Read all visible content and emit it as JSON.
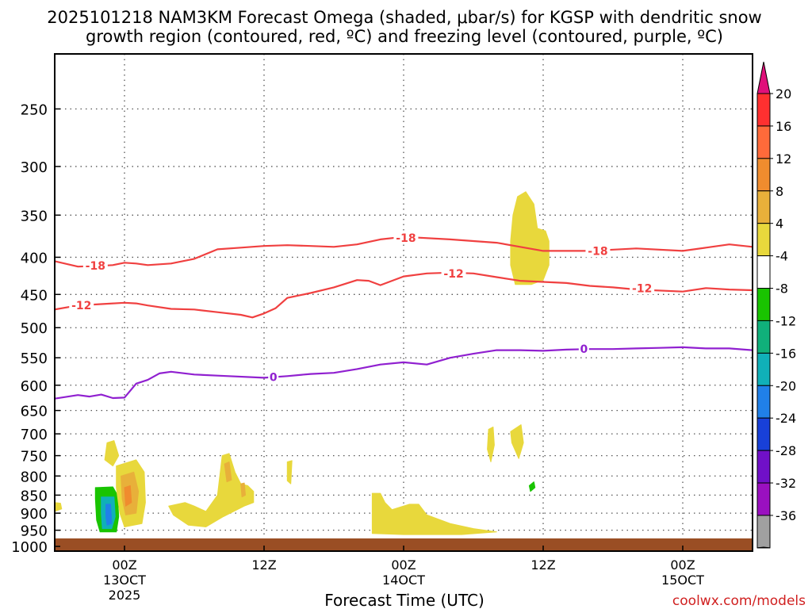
{
  "chart_data": {
    "type": "heatmap",
    "title_line1": "2025101218 NAM3KM Forecast Omega (shaded, μbar/s) for KGSP with dendritic snow",
    "title_line2": "growth region (contoured, red, ºC) and freezing level (contoured, purple, ºC)",
    "xlabel": "Forecast Time (UTC)",
    "credit": "coolwx.com/models",
    "x_ticks": [
      {
        "hour": 12,
        "label": "00Z",
        "sub1": "13OCT",
        "sub2": "2025"
      },
      {
        "hour": 24,
        "label": "12Z",
        "sub1": "",
        "sub2": ""
      },
      {
        "hour": 36,
        "label": "00Z",
        "sub1": "14OCT",
        "sub2": ""
      },
      {
        "hour": 48,
        "label": "12Z",
        "sub1": "",
        "sub2": ""
      },
      {
        "hour": 60,
        "label": "00Z",
        "sub1": "15OCT",
        "sub2": ""
      }
    ],
    "x_range_hours": [
      6,
      66
    ],
    "y_ticks": [
      250,
      300,
      350,
      400,
      450,
      500,
      550,
      600,
      650,
      700,
      750,
      800,
      850,
      900,
      950,
      1000
    ],
    "y_range_hpa": [
      210,
      1015
    ],
    "surface_pressure_hpa": 975,
    "colorbar": {
      "labels": [
        "20",
        "16",
        "12",
        "8",
        "4",
        "-4",
        "-8",
        "-12",
        "-16",
        "-20",
        "-24",
        "-28",
        "-32",
        "-36"
      ],
      "colors": [
        "#ff3030",
        "#ff6a3a",
        "#f08c2e",
        "#e8b03a",
        "#e8d83c",
        "#ffffff",
        "#19c400",
        "#10b07a",
        "#10b0b8",
        "#2080e8",
        "#1840d8",
        "#7010c8",
        "#9a10c0",
        "#a0a0a0"
      ],
      "top_color": "#e0107a",
      "bottom_color": "#000000"
    },
    "contours": [
      {
        "name": "dgz-minus18",
        "value": -18,
        "label": "-18",
        "color": "#f04040",
        "points": [
          [
            6,
            405
          ],
          [
            8,
            412
          ],
          [
            10,
            411
          ],
          [
            11,
            410
          ],
          [
            12,
            407
          ],
          [
            13,
            408
          ],
          [
            14,
            410
          ],
          [
            16,
            408
          ],
          [
            18,
            402
          ],
          [
            20,
            390
          ],
          [
            22,
            388
          ],
          [
            24,
            386
          ],
          [
            26,
            385
          ],
          [
            28,
            386
          ],
          [
            30,
            387
          ],
          [
            32,
            384
          ],
          [
            34,
            378
          ],
          [
            36,
            375
          ],
          [
            40,
            378
          ],
          [
            44,
            382
          ],
          [
            48,
            392
          ],
          [
            52,
            392
          ],
          [
            56,
            389
          ],
          [
            60,
            392
          ],
          [
            62,
            388
          ],
          [
            64,
            384
          ],
          [
            66,
            387
          ]
        ],
        "label_points": [
          [
            9.5,
            411
          ],
          [
            36.2,
            376
          ],
          [
            52.7,
            392
          ]
        ]
      },
      {
        "name": "dgz-minus12",
        "value": -12,
        "label": "-12",
        "color": "#f04040",
        "points": [
          [
            6,
            472
          ],
          [
            8,
            466
          ],
          [
            10,
            464
          ],
          [
            12,
            462
          ],
          [
            13,
            463
          ],
          [
            14,
            466
          ],
          [
            16,
            471
          ],
          [
            18,
            472
          ],
          [
            20,
            476
          ],
          [
            22,
            480
          ],
          [
            23,
            484
          ],
          [
            24,
            478
          ],
          [
            25,
            470
          ],
          [
            26,
            455
          ],
          [
            28,
            448
          ],
          [
            30,
            440
          ],
          [
            32,
            430
          ],
          [
            33,
            431
          ],
          [
            34,
            437
          ],
          [
            36,
            425
          ],
          [
            38,
            421
          ],
          [
            40,
            420
          ],
          [
            42,
            421
          ],
          [
            44,
            426
          ],
          [
            46,
            431
          ],
          [
            50,
            434
          ],
          [
            52,
            438
          ],
          [
            54,
            440
          ],
          [
            56,
            443
          ],
          [
            60,
            446
          ],
          [
            62,
            441
          ],
          [
            64,
            443
          ],
          [
            66,
            444
          ]
        ],
        "label_points": [
          [
            8.3,
            466
          ],
          [
            40.3,
            421
          ],
          [
            56.5,
            441
          ]
        ]
      },
      {
        "name": "freezing-level",
        "value": 0,
        "label": "0",
        "color": "#9020d0",
        "points": [
          [
            6,
            626
          ],
          [
            8,
            619
          ],
          [
            9,
            622
          ],
          [
            10,
            618
          ],
          [
            11,
            625
          ],
          [
            12,
            624
          ],
          [
            13,
            597
          ],
          [
            14,
            590
          ],
          [
            15,
            578
          ],
          [
            16,
            575
          ],
          [
            18,
            580
          ],
          [
            20,
            582
          ],
          [
            24,
            586
          ],
          [
            26,
            583
          ],
          [
            28,
            579
          ],
          [
            30,
            577
          ],
          [
            32,
            570
          ],
          [
            34,
            562
          ],
          [
            36,
            558
          ],
          [
            38,
            562
          ],
          [
            40,
            550
          ],
          [
            42,
            543
          ],
          [
            44,
            537
          ],
          [
            46,
            537
          ],
          [
            48,
            538
          ],
          [
            50,
            536
          ],
          [
            52,
            535
          ],
          [
            54,
            535
          ],
          [
            56,
            534
          ],
          [
            58,
            533
          ],
          [
            60,
            532
          ],
          [
            62,
            534
          ],
          [
            64,
            534
          ],
          [
            66,
            537
          ]
        ],
        "label_points": [
          [
            24.8,
            585
          ],
          [
            51.5,
            535
          ]
        ]
      }
    ],
    "omega_regions": [
      {
        "name": "upward-yellow-upper",
        "value": 4,
        "color": "#e8d83c",
        "points": [
          [
            45.8,
            330
          ],
          [
            46.5,
            325
          ],
          [
            47.2,
            338
          ],
          [
            47.5,
            365
          ],
          [
            48.2,
            368
          ],
          [
            48.5,
            380
          ],
          [
            48.5,
            410
          ],
          [
            48.0,
            430
          ],
          [
            47.0,
            436
          ],
          [
            45.6,
            436
          ],
          [
            45.2,
            410
          ],
          [
            45.2,
            380
          ],
          [
            45.4,
            350
          ]
        ]
      },
      {
        "name": "upward-yellow-low-left",
        "value": 4,
        "color": "#e8d83c",
        "points": [
          [
            6.0,
            870
          ],
          [
            6.5,
            872
          ],
          [
            6.6,
            888
          ],
          [
            6.0,
            895
          ]
        ]
      },
      {
        "name": "upward-yellow-low-1",
        "value": 4,
        "color": "#e8d83c",
        "points": [
          [
            10.5,
            720
          ],
          [
            11.1,
            715
          ],
          [
            11.5,
            750
          ],
          [
            11.0,
            775
          ],
          [
            10.3,
            760
          ]
        ]
      },
      {
        "name": "downward-blue-green",
        "value": -8,
        "color": "#19c400",
        "points": [
          [
            9.5,
            830
          ],
          [
            11.0,
            828
          ],
          [
            11.4,
            850
          ],
          [
            11.5,
            910
          ],
          [
            11.3,
            955
          ],
          [
            9.9,
            955
          ],
          [
            9.6,
            920
          ],
          [
            9.5,
            860
          ]
        ]
      },
      {
        "name": "downward-cyan",
        "value": -12,
        "color": "#10b0b8",
        "points": [
          [
            10.0,
            855
          ],
          [
            11.1,
            855
          ],
          [
            11.2,
            910
          ],
          [
            10.9,
            945
          ],
          [
            10.1,
            945
          ],
          [
            10.0,
            900
          ]
        ]
      },
      {
        "name": "downward-blue",
        "value": -20,
        "color": "#2080e8",
        "points": [
          [
            10.4,
            875
          ],
          [
            10.8,
            875
          ],
          [
            10.9,
            930
          ],
          [
            10.5,
            935
          ],
          [
            10.4,
            910
          ]
        ]
      },
      {
        "name": "upward-yellow-low-2",
        "value": 4,
        "color": "#e8d83c",
        "points": [
          [
            11.3,
            775
          ],
          [
            13.0,
            760
          ],
          [
            13.7,
            790
          ],
          [
            13.8,
            870
          ],
          [
            13.5,
            930
          ],
          [
            12.0,
            940
          ],
          [
            11.6,
            900
          ],
          [
            11.3,
            830
          ]
        ]
      },
      {
        "name": "upward-orange-low-2",
        "value": 8,
        "color": "#e8b03a",
        "points": [
          [
            11.7,
            800
          ],
          [
            12.8,
            790
          ],
          [
            13.2,
            840
          ],
          [
            13.0,
            900
          ],
          [
            12.1,
            905
          ],
          [
            11.8,
            860
          ]
        ]
      },
      {
        "name": "upward-orange-core",
        "value": 12,
        "color": "#f08c2e",
        "points": [
          [
            12.0,
            830
          ],
          [
            12.5,
            825
          ],
          [
            12.6,
            870
          ],
          [
            12.1,
            880
          ]
        ]
      },
      {
        "name": "upward-yellow-low-3",
        "value": 4,
        "color": "#e8d83c",
        "points": [
          [
            15.8,
            880
          ],
          [
            17.2,
            870
          ],
          [
            18.0,
            880
          ],
          [
            19.0,
            895
          ],
          [
            20.0,
            850
          ],
          [
            20.4,
            750
          ],
          [
            21.0,
            745
          ],
          [
            21.5,
            790
          ],
          [
            22.0,
            820
          ],
          [
            22.6,
            825
          ],
          [
            23.1,
            840
          ],
          [
            23.1,
            870
          ],
          [
            22.3,
            880
          ],
          [
            20.5,
            910
          ],
          [
            19.0,
            940
          ],
          [
            17.5,
            935
          ],
          [
            16.2,
            905
          ]
        ]
      },
      {
        "name": "upward-orange-low-3",
        "value": 8,
        "color": "#e8b03a",
        "points": [
          [
            20.6,
            770
          ],
          [
            21.0,
            765
          ],
          [
            21.2,
            810
          ],
          [
            20.8,
            815
          ]
        ]
      },
      {
        "name": "upward-orange-low-3b",
        "value": 8,
        "color": "#e8b03a",
        "points": [
          [
            22.0,
            820
          ],
          [
            22.3,
            818
          ],
          [
            22.4,
            850
          ],
          [
            22.1,
            855
          ]
        ]
      },
      {
        "name": "upward-yellow-low-4",
        "value": 4,
        "color": "#e8d83c",
        "points": [
          [
            26.0,
            765
          ],
          [
            26.4,
            762
          ],
          [
            26.3,
            820
          ],
          [
            26.0,
            812
          ]
        ]
      },
      {
        "name": "upward-yellow-low-5",
        "value": 4,
        "color": "#e8d83c",
        "points": [
          [
            33.3,
            845
          ],
          [
            34.0,
            845
          ],
          [
            34.4,
            870
          ],
          [
            35.0,
            890
          ],
          [
            36.5,
            875
          ],
          [
            37.3,
            875
          ],
          [
            38.0,
            905
          ],
          [
            40.0,
            930
          ],
          [
            42.0,
            945
          ],
          [
            44.0,
            955
          ],
          [
            41.0,
            963
          ],
          [
            36.0,
            963
          ],
          [
            33.3,
            960
          ]
        ]
      },
      {
        "name": "upward-yellow-mid-1",
        "value": 4,
        "color": "#e8d83c",
        "points": [
          [
            43.3,
            690
          ],
          [
            43.7,
            685
          ],
          [
            43.8,
            725
          ],
          [
            43.5,
            765
          ],
          [
            43.2,
            735
          ]
        ]
      },
      {
        "name": "upward-yellow-mid-2",
        "value": 4,
        "color": "#e8d83c",
        "points": [
          [
            45.2,
            695
          ],
          [
            46.1,
            680
          ],
          [
            46.3,
            720
          ],
          [
            45.9,
            757
          ],
          [
            45.3,
            720
          ]
        ]
      },
      {
        "name": "downward-green-speck",
        "value": -8,
        "color": "#19c400",
        "points": [
          [
            46.8,
            825
          ],
          [
            47.2,
            815
          ],
          [
            47.3,
            830
          ],
          [
            46.9,
            840
          ]
        ]
      }
    ]
  }
}
